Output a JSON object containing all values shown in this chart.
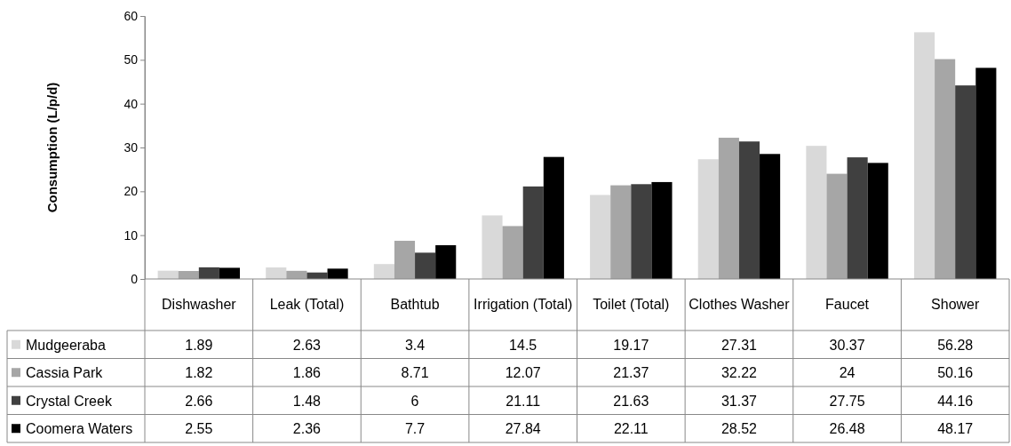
{
  "chart_data": {
    "type": "bar",
    "ylabel": "Consumption (L/p/d)",
    "categories": [
      "Dishwasher",
      "Leak (Total)",
      "Bathtub",
      "Irrigation (Total)",
      "Toilet (Total)",
      "Clothes Washer",
      "Faucet",
      "Shower"
    ],
    "series": [
      {
        "name": "Mudgeeraba",
        "color": "#d9d9d9",
        "values": [
          1.89,
          2.63,
          3.4,
          14.5,
          19.17,
          27.31,
          30.37,
          56.28
        ]
      },
      {
        "name": "Cassia Park",
        "color": "#a6a6a6",
        "values": [
          1.82,
          1.86,
          8.71,
          12.07,
          21.37,
          32.22,
          24,
          50.16
        ]
      },
      {
        "name": "Crystal Creek",
        "color": "#404040",
        "values": [
          2.66,
          1.48,
          6,
          21.11,
          21.63,
          31.37,
          27.75,
          44.16
        ]
      },
      {
        "name": "Coomera Waters",
        "color": "#000000",
        "values": [
          2.55,
          2.36,
          7.7,
          27.84,
          22.11,
          28.52,
          26.48,
          48.17
        ]
      }
    ],
    "ylim": [
      0,
      60
    ],
    "yticks": [
      0,
      10,
      20,
      30,
      40,
      50,
      60
    ],
    "grid": false,
    "legend": "bottom",
    "data_labels": true
  }
}
